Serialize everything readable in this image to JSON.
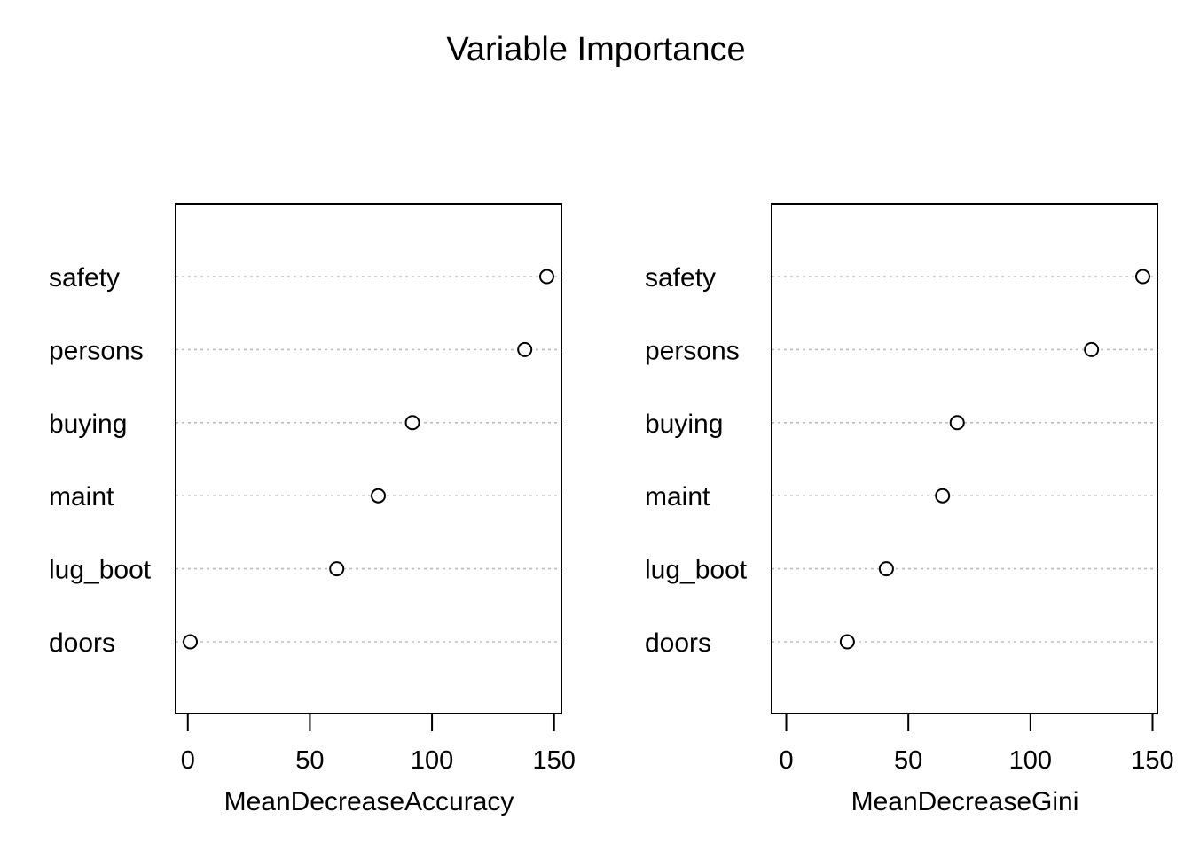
{
  "chart_data": {
    "title": "Variable Importance",
    "panels": [
      {
        "type": "scatter",
        "categories": [
          "safety",
          "persons",
          "buying",
          "maint",
          "lug_boot",
          "doors"
        ],
        "values": [
          147,
          138,
          92,
          78,
          61,
          1
        ],
        "xlabel": "MeanDecreaseAccuracy",
        "xticks": [
          0,
          50,
          100,
          150
        ],
        "xlim": [
          -5,
          153
        ],
        "grid": "horizontal dotted"
      },
      {
        "type": "scatter",
        "categories": [
          "safety",
          "persons",
          "buying",
          "maint",
          "lug_boot",
          "doors"
        ],
        "values": [
          146,
          125,
          70,
          64,
          41,
          25
        ],
        "xlabel": "MeanDecreaseGini",
        "xticks": [
          0,
          50,
          100,
          150
        ],
        "xlim": [
          -6,
          152
        ],
        "grid": "horizontal dotted"
      }
    ]
  }
}
